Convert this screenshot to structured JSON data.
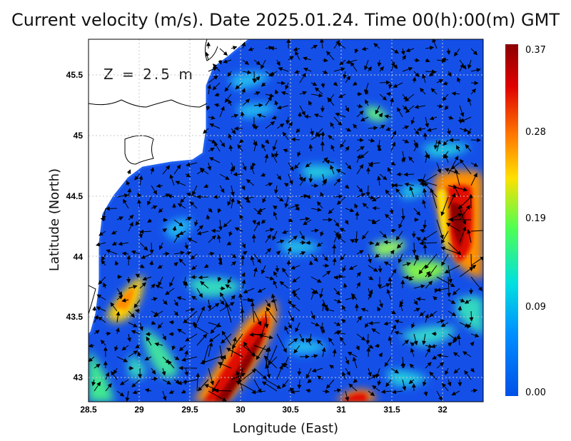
{
  "title": "Current velocity (m/s). Date 2025.01.24. Time 00(h):00(m) GMT",
  "depth_label": "Z = 2.5 m",
  "x_axis": {
    "title": "Longitude (East)",
    "ticks": [
      "28.5",
      "29",
      "29.5",
      "30",
      "30.5",
      "31",
      "31.5",
      "32"
    ]
  },
  "y_axis": {
    "title": "Latitude (North)",
    "ticks": [
      "43",
      "43.5",
      "44",
      "44.5",
      "45",
      "45.5"
    ]
  },
  "colorbar": {
    "labels": [
      "0.37",
      "0.28",
      "0.19",
      "0.09",
      "0.00"
    ],
    "colors": [
      "#8b0000",
      "#e00000",
      "#ff7a00",
      "#ffe000",
      "#50ff50",
      "#00e0e0",
      "#0090ff",
      "#0050e8"
    ]
  },
  "colors": {
    "water": "#1450e8",
    "land": "#ffffff",
    "grid": "#c8c8c8"
  }
}
